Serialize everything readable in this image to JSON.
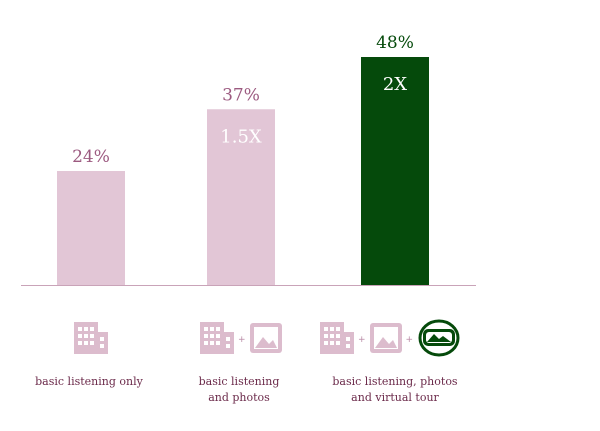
{
  "colors": {
    "bar_default": "#e2c6d6",
    "bar_highlight": "#054a0b",
    "value_label": "#9c5a80",
    "value_label_highlight": "#054a0b",
    "multiplier_text": "#ffffff",
    "axis": "#c9a3b8",
    "icon": "#dcbccd",
    "category_text": "#6b2a4a"
  },
  "chart_data": {
    "type": "bar",
    "categories": [
      "basic listening only",
      "basic listening\nand photos",
      "basic listening, photos\nand virtual tour"
    ],
    "values": [
      24,
      37,
      48
    ],
    "value_labels": [
      "24%",
      "37%",
      "48%"
    ],
    "multipliers": [
      "",
      "1.5X",
      "2X"
    ],
    "highlight_index": 2,
    "ylim": [
      0,
      48
    ],
    "grid": false,
    "legend": "none",
    "title": "",
    "xlabel": "",
    "ylabel": ""
  },
  "icon_groups": [
    {
      "icons": [
        "building-icon"
      ]
    },
    {
      "icons": [
        "building-icon",
        "photo-icon"
      ]
    },
    {
      "icons": [
        "building-icon",
        "photo-icon",
        "vr-headset-icon"
      ]
    }
  ],
  "labels": {
    "plus": "+"
  }
}
